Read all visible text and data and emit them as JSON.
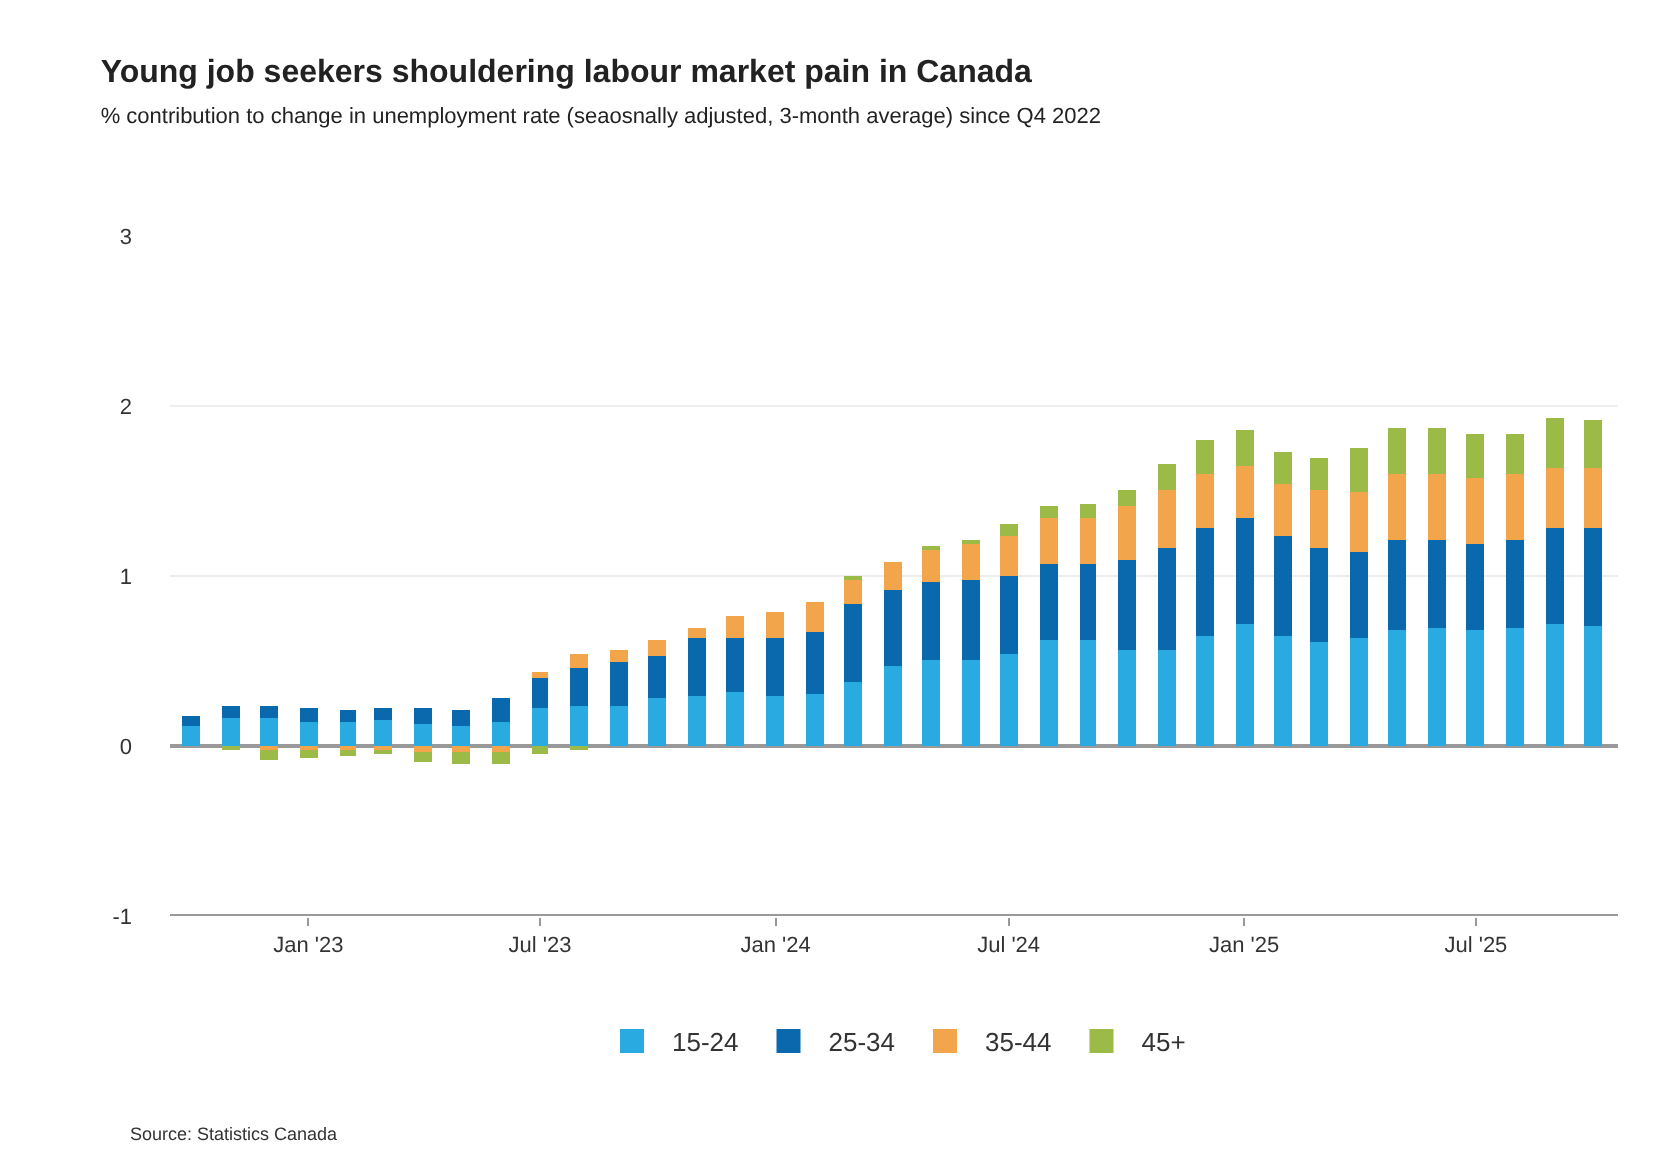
{
  "chart_data": {
    "type": "bar",
    "stacked": true,
    "title": "Young job seekers shouldering labour market pain in Canada",
    "subtitle": "% contribution to change in unemployment rate (seaosnally adjusted, 3-month average) since Q4 2022",
    "x": [
      "2022-10",
      "2022-11",
      "2022-12",
      "2023-01",
      "2023-02",
      "2023-03",
      "2023-04",
      "2023-05",
      "2023-06",
      "2023-07",
      "2023-08",
      "2023-09",
      "2023-10",
      "2023-11",
      "2023-12",
      "2024-01",
      "2024-02",
      "2024-03",
      "2024-04",
      "2024-05",
      "2024-06",
      "2024-07",
      "2024-08",
      "2024-09",
      "2024-10",
      "2024-11",
      "2024-12",
      "2025-01",
      "2025-02",
      "2025-03",
      "2025-04",
      "2025-05",
      "2025-06",
      "2025-07",
      "2025-08",
      "2025-09",
      "2025-10"
    ],
    "series": [
      {
        "name": "15-24",
        "color": "#29abe2",
        "values": [
          0.12,
          0.17,
          0.16,
          0.14,
          0.14,
          0.15,
          0.13,
          0.12,
          0.14,
          0.22,
          0.23,
          0.23,
          0.28,
          0.3,
          0.32,
          0.3,
          0.31,
          0.38,
          0.47,
          0.51,
          0.51,
          0.54,
          0.62,
          0.62,
          0.56,
          0.56,
          0.65,
          0.72,
          0.65,
          0.61,
          0.63,
          0.68,
          0.7,
          0.68,
          0.7,
          0.72,
          0.71
        ]
      },
      {
        "name": "25-34",
        "color": "#0a68ad",
        "values": [
          0.06,
          0.07,
          0.08,
          0.08,
          0.07,
          0.07,
          0.09,
          0.09,
          0.14,
          0.18,
          0.23,
          0.27,
          0.25,
          0.33,
          0.32,
          0.34,
          0.36,
          0.45,
          0.45,
          0.46,
          0.47,
          0.46,
          0.45,
          0.45,
          0.53,
          0.6,
          0.63,
          0.62,
          0.58,
          0.55,
          0.51,
          0.53,
          0.51,
          0.51,
          0.51,
          0.56,
          0.57
        ]
      },
      {
        "name": "35-44",
        "color": "#f2a54a",
        "values": [
          0,
          0,
          -0.02,
          -0.02,
          -0.02,
          -0.02,
          -0.03,
          -0.03,
          -0.03,
          0.04,
          0.08,
          0.07,
          0.09,
          0.07,
          0.13,
          0.15,
          0.18,
          0.15,
          0.16,
          0.19,
          0.21,
          0.23,
          0.27,
          0.27,
          0.32,
          0.35,
          0.32,
          0.31,
          0.31,
          0.35,
          0.36,
          0.39,
          0.39,
          0.39,
          0.39,
          0.36,
          0.36
        ]
      },
      {
        "name": "45+",
        "color": "#9cba47",
        "values": [
          0,
          -0.02,
          -0.06,
          -0.05,
          -0.04,
          -0.03,
          -0.06,
          -0.07,
          -0.07,
          -0.05,
          -0.02,
          0,
          0,
          0,
          0,
          0,
          0,
          0.02,
          0,
          0.01,
          0.02,
          0.08,
          0.07,
          0.08,
          0.1,
          0.15,
          0.2,
          0.21,
          0.19,
          0.19,
          0.25,
          0.27,
          0.27,
          0.26,
          0.24,
          0.29,
          0.28
        ]
      }
    ],
    "xlim": [
      "2022-09-15",
      "2025-10-20"
    ],
    "xticks": [
      {
        "value": "2023-01",
        "label": "Jan '23"
      },
      {
        "value": "2023-07",
        "label": "Jul '23"
      },
      {
        "value": "2024-01",
        "label": "Jan '24"
      },
      {
        "value": "2024-07",
        "label": "Jul '24"
      },
      {
        "value": "2025-01",
        "label": "Jan '25"
      },
      {
        "value": "2025-07",
        "label": "Jul '25"
      }
    ],
    "ylim": [
      -1,
      3
    ],
    "yticks": [
      -1,
      0,
      1,
      2,
      3
    ],
    "grid": "y",
    "legend": "bottom",
    "annotations": [
      "Source: Statistics Canada"
    ]
  }
}
